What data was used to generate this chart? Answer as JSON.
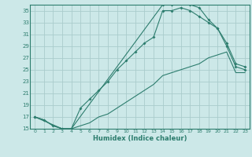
{
  "xlabel": "Humidex (Indice chaleur)",
  "bg_color": "#cce8e8",
  "line_color": "#2d7d6e",
  "grid_color": "#aacccc",
  "xlim": [
    -0.5,
    23.5
  ],
  "ylim": [
    15,
    36
  ],
  "xticks": [
    0,
    1,
    2,
    3,
    4,
    5,
    6,
    7,
    8,
    9,
    10,
    11,
    12,
    13,
    14,
    15,
    16,
    17,
    18,
    19,
    20,
    21,
    22,
    23
  ],
  "yticks": [
    15,
    17,
    19,
    21,
    23,
    25,
    27,
    29,
    31,
    33,
    35
  ],
  "line1_x": [
    0,
    1,
    2,
    3,
    4,
    5,
    6,
    7,
    8,
    9,
    10,
    11,
    12,
    13,
    14,
    15,
    16,
    17,
    18,
    19,
    20,
    21,
    22,
    23
  ],
  "line1_y": [
    17,
    16.5,
    15.5,
    15,
    15,
    18.5,
    20,
    21.5,
    23,
    25,
    26.5,
    28,
    29.5,
    30.5,
    35,
    35,
    35.5,
    35,
    34,
    33,
    32,
    29,
    25.5,
    25
  ],
  "line2_x": [
    0,
    3,
    4,
    14,
    15,
    16,
    17,
    18,
    19,
    20,
    21,
    22,
    23
  ],
  "line2_y": [
    17,
    15,
    15,
    36,
    36,
    36.5,
    36,
    35.5,
    33.5,
    32,
    29.5,
    26,
    25.5
  ],
  "line3_x": [
    0,
    1,
    2,
    3,
    4,
    5,
    6,
    7,
    8,
    9,
    10,
    11,
    12,
    13,
    14,
    15,
    16,
    17,
    18,
    19,
    20,
    21,
    22,
    23
  ],
  "line3_y": [
    17,
    16.5,
    15.5,
    15,
    15,
    15.5,
    16,
    17,
    17.5,
    18.5,
    19.5,
    20.5,
    21.5,
    22.5,
    24,
    24.5,
    25,
    25.5,
    26,
    27,
    27.5,
    28,
    24.5,
    24.5
  ]
}
